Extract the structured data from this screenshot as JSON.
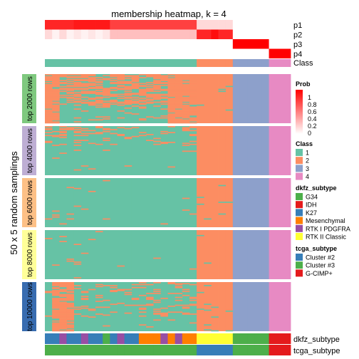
{
  "chart_data": {
    "type": "heatmap",
    "title": "membership heatmap, k = 4",
    "ylabel": "50 x 5 random samplings",
    "n_samples": 34,
    "top_annotation": {
      "rows": [
        "p1",
        "p2",
        "p3",
        "p4",
        "Class"
      ],
      "p1": [
        0.85,
        0.85,
        0.85,
        0.85,
        0.9,
        0.9,
        0.9,
        0.9,
        0.9,
        0.75,
        0.75,
        0.75,
        0.75,
        0.75,
        0.75,
        0.75,
        0.75,
        0.75,
        0.75,
        0.75,
        0.75,
        0.15,
        0.15,
        0.15,
        0.15,
        0.15,
        0,
        0,
        0,
        0,
        0,
        0,
        0,
        0
      ],
      "p2": [
        0.15,
        0.05,
        0.15,
        0.05,
        0.1,
        0.05,
        0.1,
        0.05,
        0.1,
        0.25,
        0.25,
        0.25,
        0.25,
        0.25,
        0.25,
        0.25,
        0.25,
        0.25,
        0.25,
        0.25,
        0.25,
        0.85,
        0.85,
        0.95,
        0.85,
        0.85,
        0,
        0,
        0,
        0,
        0,
        0,
        0,
        0
      ],
      "p3": [
        0,
        0,
        0,
        0,
        0,
        0,
        0,
        0,
        0,
        0,
        0,
        0,
        0,
        0,
        0,
        0,
        0,
        0,
        0,
        0,
        0,
        0,
        0,
        0,
        0,
        0,
        1,
        1,
        1,
        1,
        1,
        0,
        0,
        0
      ],
      "p4": [
        0,
        0,
        0,
        0,
        0,
        0,
        0,
        0,
        0,
        0,
        0,
        0,
        0,
        0,
        0,
        0,
        0,
        0,
        0,
        0,
        0,
        0,
        0,
        0,
        0,
        0,
        0,
        0,
        0,
        0,
        0,
        1,
        1,
        1
      ],
      "class": [
        1,
        1,
        1,
        1,
        1,
        1,
        1,
        1,
        1,
        1,
        1,
        1,
        1,
        1,
        1,
        1,
        1,
        1,
        1,
        1,
        1,
        2,
        2,
        2,
        2,
        2,
        3,
        3,
        3,
        3,
        3,
        4,
        4,
        4
      ]
    },
    "row_groups": [
      {
        "label": "top 2000 rows",
        "color": "#7FC97F",
        "n": 50
      },
      {
        "label": "top 4000 rows",
        "color": "#BEAED4",
        "n": 50
      },
      {
        "label": "top 6000 rows",
        "color": "#FDC086",
        "n": 50
      },
      {
        "label": "top 8000 rows",
        "color": "#FFFF99",
        "n": 50
      },
      {
        "label": "top 10000 rows",
        "color": "#386CB0",
        "n": 50
      }
    ],
    "bottom_annotation": {
      "rows": [
        "dkfz_subtype",
        "tcga_subtype"
      ],
      "dkfz_subtype": [
        "K27",
        "K27",
        "RTK I PDGFRA",
        "K27",
        "K27",
        "RTK I PDGFRA",
        "K27",
        "K27",
        "G34",
        "K27",
        "RTK I PDGFRA",
        "K27",
        "K27",
        "Mesenchymal",
        "Mesenchymal",
        "Mesenchymal",
        "RTK I PDGFRA",
        "Mesenchymal",
        "RTK I PDGFRA",
        "Mesenchymal",
        "Mesenchymal",
        "RTK II Classic",
        "RTK II Classic",
        "RTK II Classic",
        "RTK II Classic",
        "RTK II Classic",
        "G34",
        "G34",
        "G34",
        "G34",
        "G34",
        "IDH",
        "IDH",
        "IDH"
      ],
      "tcga_subtype": [
        "Cluster #3",
        "Cluster #3",
        "Cluster #3",
        "Cluster #3",
        "Cluster #3",
        "Cluster #3",
        "Cluster #3",
        "Cluster #3",
        "Cluster #3",
        "Cluster #3",
        "Cluster #3",
        "Cluster #3",
        "Cluster #3",
        "Cluster #3",
        "Cluster #3",
        "Cluster #3",
        "Cluster #3",
        "Cluster #3",
        "Cluster #3",
        "Cluster #3",
        "Cluster #3",
        "Cluster #2",
        "Cluster #2",
        "Cluster #2",
        "Cluster #2",
        "Cluster #2",
        "Cluster #3",
        "Cluster #3",
        "Cluster #3",
        "Cluster #3",
        "Cluster #3",
        "G-CIMP+",
        "G-CIMP+",
        "G-CIMP+"
      ]
    },
    "legends": [
      {
        "title": "Prob",
        "type": "continuous",
        "ticks": [
          "1",
          "0.8",
          "0.6",
          "0.4",
          "0.2",
          "0"
        ],
        "colors": [
          "#FFFFFF",
          "#FF0000"
        ]
      },
      {
        "title": "Class",
        "type": "discrete",
        "items": [
          {
            "label": "1",
            "color": "#66C2A5"
          },
          {
            "label": "2",
            "color": "#FC8D62"
          },
          {
            "label": "3",
            "color": "#8DA0CB"
          },
          {
            "label": "4",
            "color": "#E78AC3"
          }
        ]
      },
      {
        "title": "dkfz_subtype",
        "type": "discrete",
        "items": [
          {
            "label": "G34",
            "color": "#4DAF4A"
          },
          {
            "label": "IDH",
            "color": "#E41A1C"
          },
          {
            "label": "K27",
            "color": "#377EB8"
          },
          {
            "label": "Mesenchymal",
            "color": "#FF7F00"
          },
          {
            "label": "RTK I PDGFRA",
            "color": "#984EA3"
          },
          {
            "label": "RTK II Classic",
            "color": "#FFFF33"
          }
        ]
      },
      {
        "title": "tcga_subtype",
        "type": "discrete",
        "items": [
          {
            "label": "Cluster #2",
            "color": "#377EB8"
          },
          {
            "label": "Cluster #3",
            "color": "#4DAF4A"
          },
          {
            "label": "G-CIMP+",
            "color": "#E41A1C"
          }
        ]
      }
    ]
  }
}
